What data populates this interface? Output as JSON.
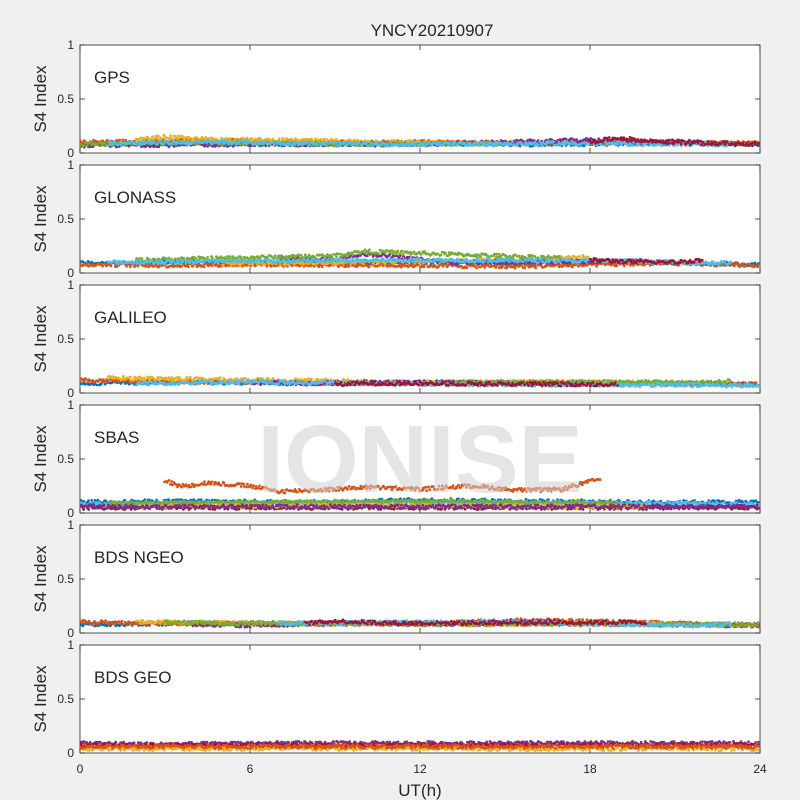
{
  "watermark": "IONISE",
  "chart_data": {
    "type": "scatter",
    "title": "YNCY20210907",
    "xlabel": "UT(h)",
    "ylabel": "S4 Index",
    "xlim": [
      0,
      24
    ],
    "ylim": [
      0,
      1
    ],
    "xticks": [
      0,
      6,
      12,
      18,
      24
    ],
    "yticks": [
      0,
      0.5,
      1
    ],
    "ytick_labels": [
      "0",
      "0.5",
      "1"
    ],
    "grid": false,
    "panels": [
      {
        "label": "GPS",
        "series_colors": [
          "#0072BD",
          "#D95319",
          "#EDB120",
          "#7E2F8E",
          "#77AC30",
          "#4DBEEE",
          "#A2142F"
        ],
        "series": [
          {
            "color": "#0072BD",
            "x": [
              0,
              4,
              8,
              12,
              16,
              20,
              24
            ],
            "y": [
              0.08,
              0.09,
              0.08,
              0.09,
              0.08,
              0.09,
              0.08
            ]
          },
          {
            "color": "#D95319",
            "x": [
              0,
              4,
              8,
              12,
              16,
              20,
              24
            ],
            "y": [
              0.1,
              0.12,
              0.1,
              0.1,
              0.09,
              0.1,
              0.09
            ]
          },
          {
            "color": "#EDB120",
            "x": [
              2,
              3,
              4,
              14,
              16
            ],
            "y": [
              0.12,
              0.15,
              0.13,
              0.09,
              0.1
            ]
          },
          {
            "color": "#7E2F8E",
            "x": [
              0,
              6,
              12,
              18,
              22
            ],
            "y": [
              0.07,
              0.08,
              0.08,
              0.12,
              0.1
            ]
          },
          {
            "color": "#77AC30",
            "x": [
              0,
              4,
              10,
              15
            ],
            "y": [
              0.08,
              0.1,
              0.08,
              0.09
            ]
          },
          {
            "color": "#4DBEEE",
            "x": [
              1,
              5,
              11,
              17,
              23
            ],
            "y": [
              0.09,
              0.1,
              0.08,
              0.09,
              0.08
            ]
          },
          {
            "color": "#A2142F",
            "x": [
              18,
              19,
              20,
              21,
              22,
              23,
              24
            ],
            "y": [
              0.1,
              0.14,
              0.11,
              0.1,
              0.09,
              0.09,
              0.08
            ]
          }
        ]
      },
      {
        "label": "GLONASS",
        "series_colors": [
          "#0072BD",
          "#D95319",
          "#EDB120",
          "#7E2F8E",
          "#77AC30",
          "#4DBEEE",
          "#A2142F"
        ],
        "series": [
          {
            "color": "#0072BD",
            "x": [
              0,
              4,
              8,
              12,
              16,
              20,
              24
            ],
            "y": [
              0.09,
              0.1,
              0.09,
              0.1,
              0.09,
              0.1,
              0.08
            ]
          },
          {
            "color": "#D95319",
            "x": [
              0,
              3,
              6,
              12,
              15,
              21,
              24
            ],
            "y": [
              0.08,
              0.07,
              0.08,
              0.07,
              0.06,
              0.09,
              0.07
            ]
          },
          {
            "color": "#EDB120",
            "x": [
              5,
              10,
              16,
              18
            ],
            "y": [
              0.09,
              0.1,
              0.12,
              0.15
            ]
          },
          {
            "color": "#7E2F8E",
            "x": [
              7,
              9,
              10,
              13,
              20
            ],
            "y": [
              0.14,
              0.12,
              0.18,
              0.1,
              0.11
            ]
          },
          {
            "color": "#77AC30",
            "x": [
              2,
              9,
              10,
              17
            ],
            "y": [
              0.12,
              0.16,
              0.2,
              0.14
            ]
          },
          {
            "color": "#4DBEEE",
            "x": [
              1,
              12,
              19,
              23
            ],
            "y": [
              0.1,
              0.12,
              0.11,
              0.09
            ]
          },
          {
            "color": "#A2142F",
            "x": [
              18,
              19,
              20,
              21,
              22
            ],
            "y": [
              0.12,
              0.11,
              0.1,
              0.1,
              0.12
            ]
          }
        ]
      },
      {
        "label": "GALILEO",
        "series_colors": [
          "#0072BD",
          "#D95319",
          "#EDB120",
          "#7E2F8E",
          "#77AC30",
          "#4DBEEE",
          "#A2142F"
        ],
        "series": [
          {
            "color": "#0072BD",
            "x": [
              0,
              4,
              8,
              12,
              16,
              20,
              24
            ],
            "y": [
              0.09,
              0.1,
              0.09,
              0.09,
              0.08,
              0.09,
              0.08
            ]
          },
          {
            "color": "#D95319",
            "x": [
              0,
              1,
              6,
              12,
              16,
              24
            ],
            "y": [
              0.12,
              0.11,
              0.1,
              0.09,
              0.1,
              0.08
            ]
          },
          {
            "color": "#EDB120",
            "x": [
              1,
              12,
              18,
              21
            ],
            "y": [
              0.14,
              0.1,
              0.1,
              0.09
            ]
          },
          {
            "color": "#7E2F8E",
            "x": [
              6,
              8,
              10,
              18
            ],
            "y": [
              0.1,
              0.09,
              0.1,
              0.09
            ]
          },
          {
            "color": "#77AC30",
            "x": [
              13,
              15,
              22,
              23
            ],
            "y": [
              0.09,
              0.1,
              0.1,
              0.11
            ]
          },
          {
            "color": "#4DBEEE",
            "x": [
              2,
              5,
              15,
              24
            ],
            "y": [
              0.09,
              0.1,
              0.08,
              0.07
            ]
          },
          {
            "color": "#A2142F",
            "x": [
              9,
              10,
              19
            ],
            "y": [
              0.08,
              0.09,
              0.08
            ]
          }
        ]
      },
      {
        "label": "SBAS",
        "series_colors": [
          "#0072BD",
          "#D95319",
          "#EDB120",
          "#7E2F8E",
          "#77AC30",
          "#4DBEEE",
          "#A2142F"
        ],
        "series": [
          {
            "color": "#D95319",
            "x": [
              3,
              3.5,
              4,
              4.5,
              6,
              7,
              9,
              10,
              12,
              13,
              14,
              15,
              16,
              17,
              18.4
            ],
            "y": [
              0.3,
              0.25,
              0.26,
              0.28,
              0.25,
              0.2,
              0.22,
              0.24,
              0.22,
              0.24,
              0.25,
              0.22,
              0.21,
              0.22,
              0.32
            ]
          },
          {
            "color": "#0072BD",
            "x": [
              0,
              4,
              8,
              12,
              16,
              20,
              24
            ],
            "y": [
              0.1,
              0.11,
              0.1,
              0.12,
              0.11,
              0.1,
              0.1
            ]
          },
          {
            "color": "#4DBEEE",
            "x": [
              0,
              4,
              8,
              12,
              16,
              20,
              24
            ],
            "y": [
              0.08,
              0.09,
              0.09,
              0.1,
              0.09,
              0.09,
              0.08
            ]
          },
          {
            "color": "#A2142F",
            "x": [
              0,
              6,
              12,
              18,
              24
            ],
            "y": [
              0.05,
              0.05,
              0.05,
              0.05,
              0.05
            ]
          },
          {
            "color": "#77AC30",
            "x": [
              1,
              7,
              13,
              19
            ],
            "y": [
              0.09,
              0.1,
              0.11,
              0.09
            ]
          },
          {
            "color": "#EDB120",
            "x": [
              2,
              10,
              20
            ],
            "y": [
              0.06,
              0.07,
              0.06
            ]
          },
          {
            "color": "#7E2F8E",
            "x": [
              0,
              12,
              24
            ],
            "y": [
              0.06,
              0.06,
              0.06
            ]
          }
        ]
      },
      {
        "label": "BDS NGEO",
        "series_colors": [
          "#0072BD",
          "#D95319",
          "#EDB120",
          "#7E2F8E",
          "#77AC30",
          "#4DBEEE",
          "#A2142F"
        ],
        "series": [
          {
            "color": "#0072BD",
            "x": [
              0,
              4,
              8,
              12,
              16,
              20,
              24
            ],
            "y": [
              0.08,
              0.09,
              0.09,
              0.08,
              0.09,
              0.08,
              0.07
            ]
          },
          {
            "color": "#D95319",
            "x": [
              0,
              4,
              8,
              12,
              16,
              24
            ],
            "y": [
              0.1,
              0.09,
              0.08,
              0.09,
              0.12,
              0.07
            ]
          },
          {
            "color": "#EDB120",
            "x": [
              2,
              14,
              18,
              21
            ],
            "y": [
              0.1,
              0.08,
              0.09,
              0.08
            ]
          },
          {
            "color": "#7E2F8E",
            "x": [
              4,
              6,
              10,
              13,
              17
            ],
            "y": [
              0.08,
              0.07,
              0.1,
              0.09,
              0.11
            ]
          },
          {
            "color": "#77AC30",
            "x": [
              3,
              5,
              19,
              24
            ],
            "y": [
              0.1,
              0.09,
              0.08,
              0.08
            ]
          },
          {
            "color": "#4DBEEE",
            "x": [
              7,
              15,
              22,
              23
            ],
            "y": [
              0.09,
              0.1,
              0.07,
              0.08
            ]
          },
          {
            "color": "#A2142F",
            "x": [
              8,
              9,
              11,
              20
            ],
            "y": [
              0.09,
              0.11,
              0.09,
              0.1
            ]
          }
        ]
      },
      {
        "label": "BDS GEO",
        "series_colors": [
          "#7E2F8E",
          "#A2142F",
          "#EDB120",
          "#D95319"
        ],
        "series": [
          {
            "color": "#7E2F8E",
            "x": [
              0,
              3,
              6,
              9,
              12,
              15,
              18,
              21,
              24
            ],
            "y": [
              0.09,
              0.08,
              0.09,
              0.09,
              0.09,
              0.09,
              0.09,
              0.09,
              0.09
            ]
          },
          {
            "color": "#A2142F",
            "x": [
              0,
              6,
              12,
              18,
              24
            ],
            "y": [
              0.07,
              0.07,
              0.07,
              0.07,
              0.07
            ]
          },
          {
            "color": "#EDB120",
            "x": [
              0,
              6,
              12,
              18,
              24
            ],
            "y": [
              0.04,
              0.04,
              0.04,
              0.04,
              0.04
            ]
          },
          {
            "color": "#D95319",
            "x": [
              0,
              6,
              12,
              18,
              24
            ],
            "y": [
              0.06,
              0.06,
              0.06,
              0.06,
              0.06
            ]
          }
        ]
      }
    ]
  }
}
